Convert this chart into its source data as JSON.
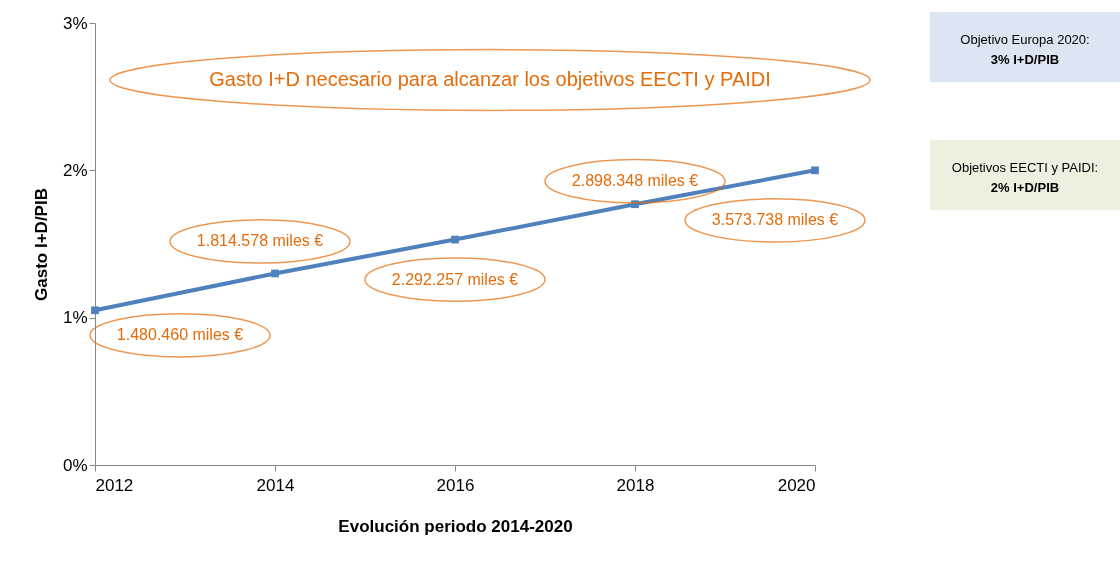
{
  "chart_data": {
    "type": "line",
    "title": "Gasto I+D necesario para alcanzar los objetivos EECTI y PAIDI",
    "xlabel": "Evolución  periodo 2014-2020",
    "ylabel": "Gasto  I+D/PIB",
    "x": [
      2012,
      2014,
      2016,
      2018,
      2020
    ],
    "series": [
      {
        "color": "#4f81bd",
        "values": [
          1.05,
          1.3,
          1.53,
          1.77,
          2.0
        ]
      }
    ],
    "xlim": [
      2012,
      2020
    ],
    "xticks": [
      2012,
      2014,
      2016,
      2018,
      2020
    ],
    "ylim": [
      0,
      3
    ],
    "yticks": [
      {
        "value": 0,
        "label": "0%"
      },
      {
        "value": 1,
        "label": "1%"
      },
      {
        "value": 2,
        "label": "2%"
      },
      {
        "value": 3,
        "label": "3%"
      }
    ],
    "grid": false,
    "marker": "square",
    "line_style": "solid",
    "annotations": [
      {
        "text": "1.480.460 miles €",
        "x": 2012,
        "y": 1.05
      },
      {
        "text": "1.814.578 miles €",
        "x": 2014,
        "y": 1.3
      },
      {
        "text": "2.292.257 miles €",
        "x": 2016,
        "y": 1.53
      },
      {
        "text": "2.898.348 miles €",
        "x": 2018,
        "y": 1.77
      },
      {
        "text": "3.573.738 miles €",
        "x": 2020,
        "y": 2.0
      },
      "Objetivo Europa 2020:",
      "3% I+D/PIB",
      "Objetivos EECTI y PAIDI:",
      "2% I+D/PIB"
    ]
  }
}
